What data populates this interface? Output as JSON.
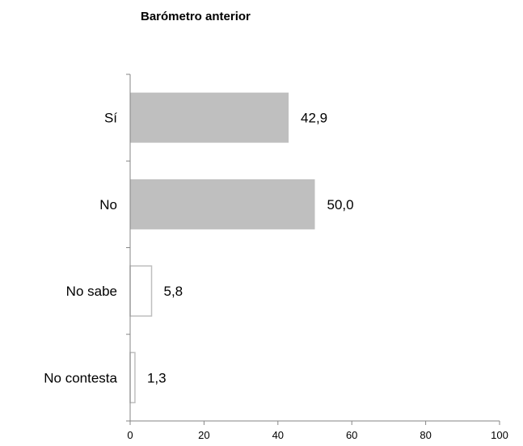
{
  "chart_data": {
    "type": "bar",
    "orientation": "horizontal",
    "title": "Barómetro anterior",
    "categories": [
      "Sí",
      "No",
      "No sabe",
      "No contesta"
    ],
    "values": [
      42.9,
      50.0,
      5.8,
      1.3
    ],
    "value_labels": [
      "42,9",
      "50,0",
      "5,8",
      "1,3"
    ],
    "xlim": [
      0,
      100
    ],
    "x_ticks": [
      0,
      20,
      40,
      60,
      80,
      100
    ],
    "x_tick_labels": [
      "0",
      "20",
      "40",
      "60",
      "80",
      "100"
    ],
    "xlabel": "",
    "ylabel": "",
    "grid": false,
    "legend": "none",
    "bar_styles": [
      {
        "fill": "#bfbfbf",
        "stroke": "none"
      },
      {
        "fill": "#bfbfbf",
        "stroke": "none"
      },
      {
        "fill": "#ffffff",
        "stroke": "#bfbfbf"
      },
      {
        "fill": "#ffffff",
        "stroke": "#bfbfbf"
      }
    ],
    "axis_color": "#868686"
  }
}
